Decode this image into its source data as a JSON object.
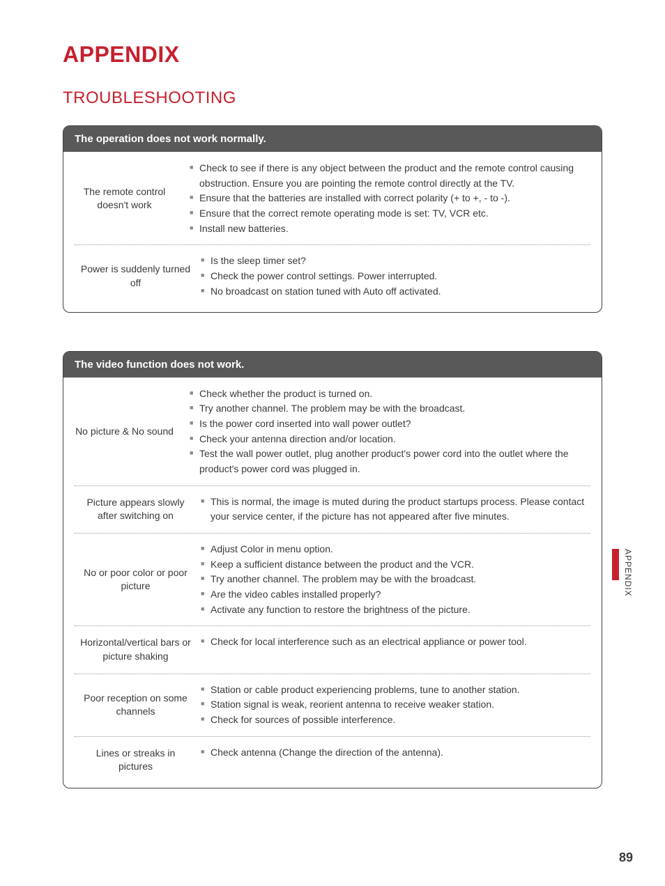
{
  "colors": {
    "accent": "#c6202e",
    "header_bg": "#595959",
    "text": "#3a3a3a",
    "bullet": "#8a8a8a",
    "dotted": "#9a9a9a"
  },
  "main_title": "APPENDIX",
  "section_title": "TROUBLESHOOTING",
  "side_label": "APPENDIX",
  "page_number": "89",
  "panels": [
    {
      "header": "The operation does not work normally.",
      "rows": [
        {
          "symptom": "The remote control doesn't work",
          "items": [
            "Check to see if there is any object between the product and the remote control causing obstruction. Ensure you are pointing the remote control directly at the TV.",
            "Ensure that the batteries are installed with correct polarity (+ to +, - to -).",
            "Ensure that the correct remote operating mode is set: TV, VCR etc.",
            "Install new batteries."
          ]
        },
        {
          "symptom": "Power is suddenly turned off",
          "items": [
            "Is the sleep timer set?",
            "Check the power control settings. Power interrupted.",
            "No broadcast on station tuned with Auto off activated."
          ]
        }
      ]
    },
    {
      "header": "The video function does not work.",
      "rows": [
        {
          "symptom": "No picture & No sound",
          "items": [
            "Check whether the product is turned on.",
            "Try another channel. The problem may be with the broadcast.",
            "Is the power cord inserted into wall power outlet?",
            "Check your antenna direction and/or location.",
            "Test the wall power outlet, plug another product's power cord into the outlet where the product's power cord was plugged in."
          ]
        },
        {
          "symptom": "Picture appears slowly after switching on",
          "items": [
            "This is normal, the image is muted during the product startups process. Please contact your service center, if the picture has not appeared after five minutes."
          ]
        },
        {
          "symptom": "No or poor color or poor picture",
          "items": [
            "Adjust Color in menu option.",
            "Keep a sufficient distance between the product and the VCR.",
            "Try another channel. The problem may be with the broadcast.",
            "Are the video cables installed properly?",
            "Activate any function to restore the brightness of the picture."
          ]
        },
        {
          "symptom": "Horizontal/vertical bars or picture shaking",
          "items": [
            "Check for local interference such as an electrical appliance or power tool."
          ]
        },
        {
          "symptom": "Poor reception on some channels",
          "items": [
            "Station or cable product experiencing problems, tune to another station.",
            "Station signal is weak, reorient antenna to receive weaker station.",
            "Check for sources of possible interference."
          ]
        },
        {
          "symptom": "Lines or streaks in pictures",
          "items": [
            "Check antenna (Change the direction of the antenna)."
          ]
        }
      ]
    }
  ]
}
